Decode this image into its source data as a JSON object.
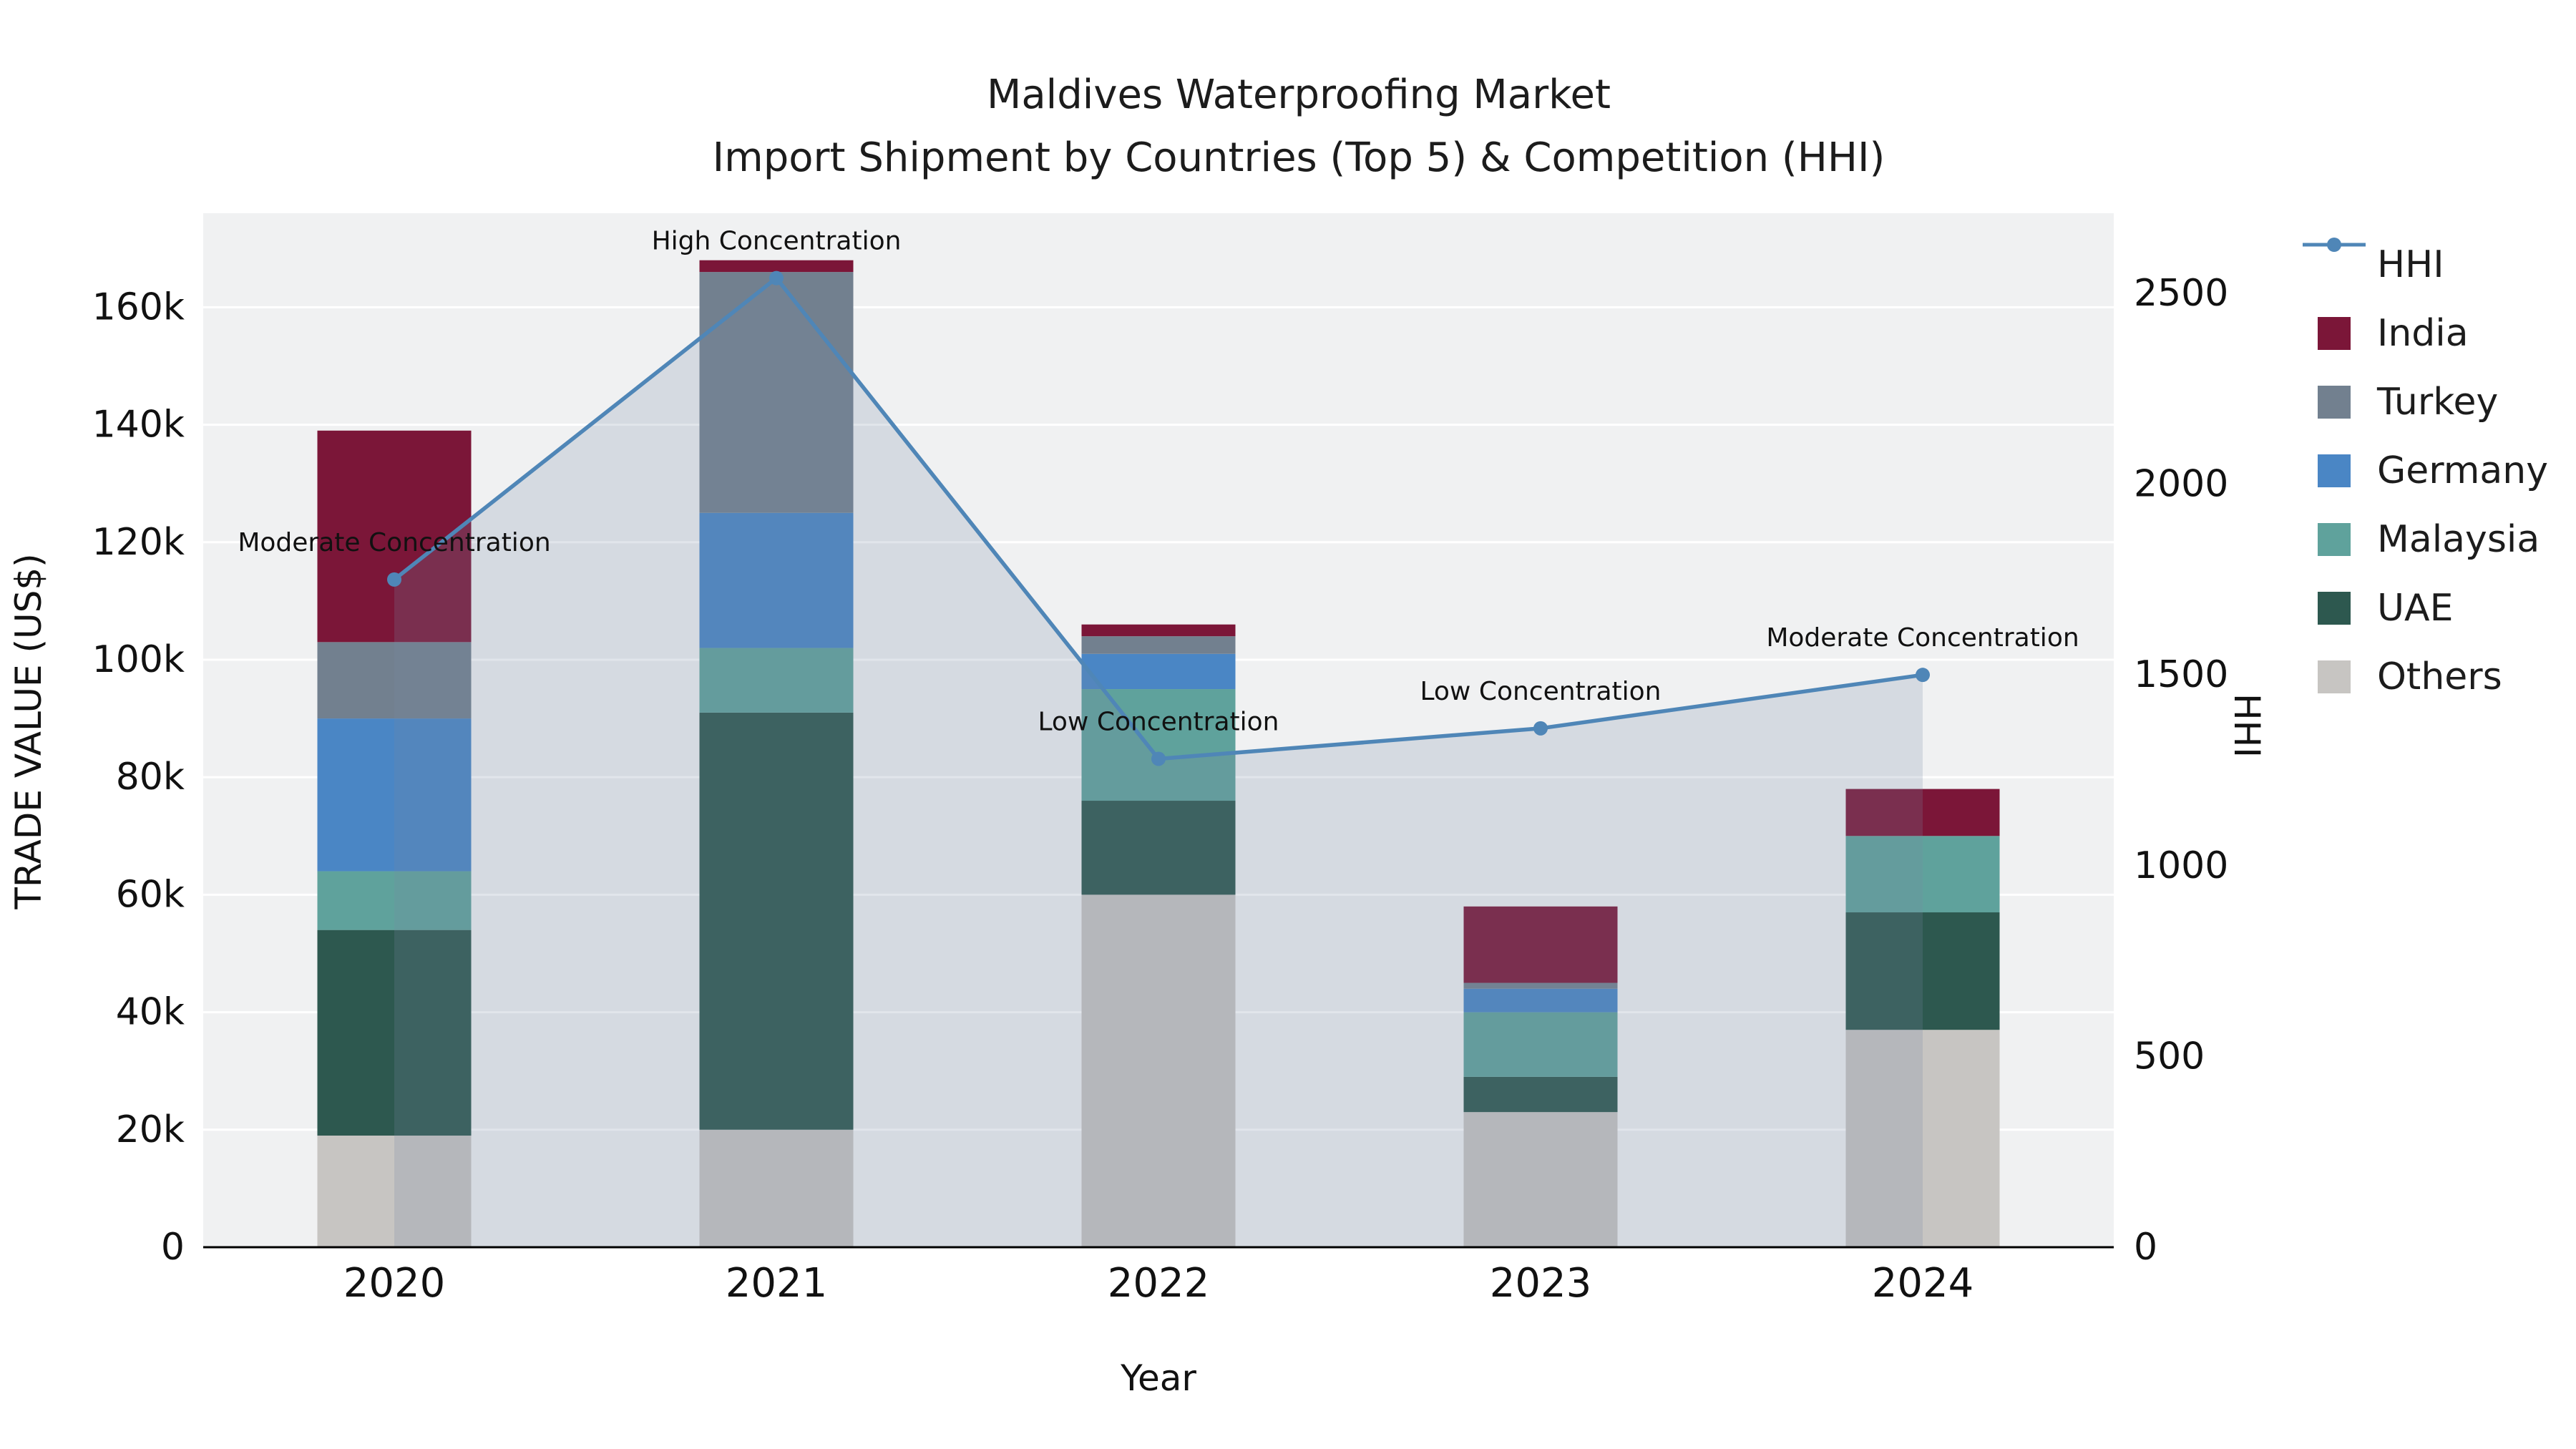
{
  "figure": {
    "title_line1": "Maldives Waterproofing Market",
    "title_line2": "Import Shipment by Countries (Top 5) & Competition (HHI)",
    "x_axis_title": "Year",
    "y_left_title": "TRADE VALUE (US$)",
    "y_right_title": "HHI"
  },
  "chart_data": {
    "type": "bar+line",
    "title": "Maldives Waterproofing Market — Import Shipment by Countries (Top 5) & Competition (HHI)",
    "categories": [
      "2020",
      "2021",
      "2022",
      "2023",
      "2024"
    ],
    "xlabel": "Year",
    "ylabel_left": "TRADE VALUE (US$)",
    "ylabel_right": "HHI",
    "stacked_bars_bottom_to_top": [
      {
        "name": "Others",
        "color": "#c7c5c2",
        "values": [
          19000,
          20000,
          60000,
          23000,
          37000
        ]
      },
      {
        "name": "UAE",
        "color": "#2d584f",
        "values": [
          35000,
          71000,
          16000,
          6000,
          20000
        ]
      },
      {
        "name": "Malaysia",
        "color": "#5fa29c",
        "values": [
          10000,
          11000,
          19000,
          11000,
          13000
        ]
      },
      {
        "name": "Germany",
        "color": "#4a86c5",
        "values": [
          26000,
          23000,
          6000,
          4000,
          0
        ]
      },
      {
        "name": "Turkey",
        "color": "#72808f",
        "values": [
          13000,
          41000,
          3000,
          1000,
          0
        ]
      },
      {
        "name": "India",
        "color": "#7b1638",
        "values": [
          36000,
          2000,
          2000,
          13000,
          8000
        ]
      }
    ],
    "line_series": {
      "name": "HHI",
      "color": "#4f86b7",
      "area_fill": "rgba(119,136,163,0.22)",
      "values": [
        1750,
        2540,
        1280,
        1360,
        1500
      ]
    },
    "annotations": [
      "Moderate Concentration",
      "High Concentration",
      "Low Concentration",
      "Low Concentration",
      "Moderate Concentration"
    ],
    "y_left": {
      "range": [
        0,
        176000
      ],
      "tick_values": [
        0,
        20000,
        40000,
        60000,
        80000,
        100000,
        120000,
        140000,
        160000
      ],
      "tick_labels": [
        "0",
        "20k",
        "40k",
        "60k",
        "80k",
        "100k",
        "120k",
        "140k",
        "160k"
      ]
    },
    "y_right": {
      "range": [
        0,
        2710
      ],
      "tick_values": [
        0,
        500,
        1000,
        1500,
        2000,
        2500
      ],
      "tick_labels": [
        "0",
        "500",
        "1000",
        "1500",
        "2000",
        "2500"
      ]
    },
    "legend_order": [
      "HHI",
      "India",
      "Turkey",
      "Germany",
      "Malaysia",
      "UAE",
      "Others"
    ],
    "grid": true,
    "legend_position": "right",
    "plot_background": "#f0f1f2",
    "gridline_color": "#ffffff"
  }
}
